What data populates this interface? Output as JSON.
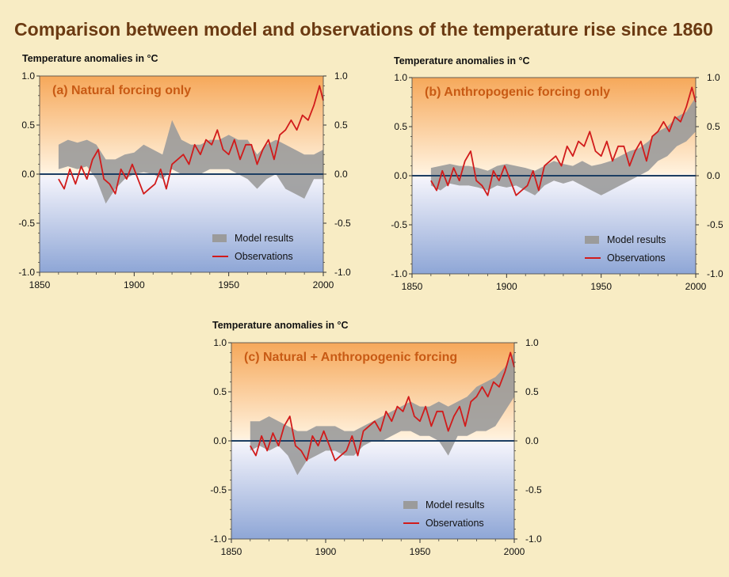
{
  "page_title": "Comparison between model and observations of the temperature rise since 1860",
  "colors": {
    "background": "#f8ecc4",
    "title": "#6b3a12",
    "panel_title": "#c85a14",
    "warm_top": "#f6a85a",
    "cool_bottom": "#8ea6d6",
    "zero_line": "#1d3e63",
    "model_band": "#9b9b9b",
    "observations": "#d11b1b"
  },
  "chart_data": [
    {
      "type": "line",
      "panel": "a",
      "title": "(a) Natural forcing only",
      "ylabel": "Temperature anomalies in °C",
      "xlabel": "",
      "xlim": [
        1850,
        2000
      ],
      "ylim": [
        -1.0,
        1.0
      ],
      "xticks": [
        1850,
        1900,
        1950,
        2000
      ],
      "yticks": [
        1.0,
        0.5,
        0.0,
        -0.5,
        -1.0
      ],
      "ytick_labels": [
        "1.0",
        "0.5",
        "0.0",
        "-0.5",
        "-1.0"
      ],
      "legend": {
        "model": "Model results",
        "observations": "Observations",
        "position": "bottom-right"
      },
      "series": [
        {
          "name": "Model results",
          "type": "band",
          "x": [
            1860,
            1865,
            1870,
            1875,
            1880,
            1885,
            1890,
            1895,
            1900,
            1905,
            1910,
            1915,
            1920,
            1925,
            1930,
            1935,
            1940,
            1945,
            1950,
            1955,
            1960,
            1965,
            1970,
            1975,
            1980,
            1985,
            1990,
            1995,
            2000
          ],
          "lower": [
            0.05,
            0.08,
            0.05,
            0.08,
            -0.05,
            -0.3,
            -0.15,
            -0.05,
            0.0,
            0.02,
            0.0,
            -0.05,
            0.05,
            0.0,
            0.0,
            0.0,
            0.05,
            0.05,
            0.05,
            0.0,
            -0.05,
            -0.15,
            -0.05,
            0.0,
            -0.15,
            -0.2,
            -0.25,
            -0.05,
            -0.05
          ],
          "upper": [
            0.3,
            0.35,
            0.32,
            0.35,
            0.3,
            0.15,
            0.15,
            0.2,
            0.22,
            0.3,
            0.25,
            0.2,
            0.55,
            0.35,
            0.3,
            0.3,
            0.35,
            0.35,
            0.4,
            0.35,
            0.35,
            0.2,
            0.3,
            0.35,
            0.3,
            0.25,
            0.2,
            0.2,
            0.25
          ]
        },
        {
          "name": "Observations",
          "type": "line",
          "x": [
            1860,
            1863,
            1866,
            1869,
            1872,
            1875,
            1878,
            1881,
            1884,
            1887,
            1890,
            1893,
            1896,
            1899,
            1902,
            1905,
            1908,
            1911,
            1914,
            1917,
            1920,
            1923,
            1926,
            1929,
            1932,
            1935,
            1938,
            1941,
            1944,
            1947,
            1950,
            1953,
            1956,
            1959,
            1962,
            1965,
            1968,
            1971,
            1974,
            1977,
            1980,
            1983,
            1986,
            1989,
            1992,
            1995,
            1998,
            2000
          ],
          "y": [
            -0.05,
            -0.15,
            0.05,
            -0.1,
            0.08,
            -0.05,
            0.15,
            0.25,
            -0.05,
            -0.1,
            -0.2,
            0.05,
            -0.05,
            0.1,
            -0.05,
            -0.2,
            -0.15,
            -0.1,
            0.05,
            -0.15,
            0.1,
            0.15,
            0.2,
            0.1,
            0.3,
            0.2,
            0.35,
            0.3,
            0.45,
            0.25,
            0.2,
            0.35,
            0.15,
            0.3,
            0.3,
            0.1,
            0.25,
            0.35,
            0.15,
            0.4,
            0.45,
            0.55,
            0.45,
            0.6,
            0.55,
            0.7,
            0.9,
            0.75
          ]
        }
      ]
    },
    {
      "type": "line",
      "panel": "b",
      "title": "(b) Anthropogenic forcing only",
      "ylabel": "Temperature anomalies in °C",
      "xlabel": "",
      "xlim": [
        1850,
        2000
      ],
      "ylim": [
        -1.0,
        1.0
      ],
      "xticks": [
        1850,
        1900,
        1950,
        2000
      ],
      "yticks": [
        1.0,
        0.5,
        0.0,
        -0.5,
        -1.0
      ],
      "ytick_labels": [
        "1.0",
        "0.5",
        "0.0",
        "-0.5",
        "-1.0"
      ],
      "legend": {
        "model": "Model results",
        "observations": "Observations",
        "position": "bottom-right"
      },
      "series": [
        {
          "name": "Model results",
          "type": "band",
          "x": [
            1860,
            1865,
            1870,
            1875,
            1880,
            1885,
            1890,
            1895,
            1900,
            1905,
            1910,
            1915,
            1920,
            1925,
            1930,
            1935,
            1940,
            1945,
            1950,
            1955,
            1960,
            1965,
            1970,
            1975,
            1980,
            1985,
            1990,
            1995,
            2000
          ],
          "lower": [
            -0.1,
            -0.15,
            -0.08,
            -0.1,
            -0.1,
            -0.12,
            -0.15,
            -0.1,
            -0.12,
            -0.1,
            -0.15,
            -0.2,
            -0.1,
            -0.05,
            -0.08,
            -0.05,
            -0.1,
            -0.15,
            -0.2,
            -0.15,
            -0.1,
            -0.05,
            0.0,
            0.05,
            0.15,
            0.2,
            0.3,
            0.35,
            0.45
          ],
          "upper": [
            0.08,
            0.1,
            0.12,
            0.1,
            0.1,
            0.08,
            0.05,
            0.1,
            0.12,
            0.1,
            0.08,
            0.05,
            0.1,
            0.15,
            0.12,
            0.1,
            0.15,
            0.1,
            0.12,
            0.15,
            0.2,
            0.25,
            0.28,
            0.35,
            0.45,
            0.5,
            0.6,
            0.65,
            0.8
          ]
        },
        {
          "name": "Observations",
          "type": "line",
          "x": [
            1860,
            1863,
            1866,
            1869,
            1872,
            1875,
            1878,
            1881,
            1884,
            1887,
            1890,
            1893,
            1896,
            1899,
            1902,
            1905,
            1908,
            1911,
            1914,
            1917,
            1920,
            1923,
            1926,
            1929,
            1932,
            1935,
            1938,
            1941,
            1944,
            1947,
            1950,
            1953,
            1956,
            1959,
            1962,
            1965,
            1968,
            1971,
            1974,
            1977,
            1980,
            1983,
            1986,
            1989,
            1992,
            1995,
            1998,
            2000
          ],
          "y": [
            -0.05,
            -0.15,
            0.05,
            -0.1,
            0.08,
            -0.05,
            0.15,
            0.25,
            -0.05,
            -0.1,
            -0.2,
            0.05,
            -0.05,
            0.1,
            -0.05,
            -0.2,
            -0.15,
            -0.1,
            0.05,
            -0.15,
            0.1,
            0.15,
            0.2,
            0.1,
            0.3,
            0.2,
            0.35,
            0.3,
            0.45,
            0.25,
            0.2,
            0.35,
            0.15,
            0.3,
            0.3,
            0.1,
            0.25,
            0.35,
            0.15,
            0.4,
            0.45,
            0.55,
            0.45,
            0.6,
            0.55,
            0.7,
            0.9,
            0.75
          ]
        }
      ]
    },
    {
      "type": "line",
      "panel": "c",
      "title": "(c) Natural + Anthropogenic forcing",
      "ylabel": "Temperature anomalies in °C",
      "xlabel": "",
      "xlim": [
        1850,
        2000
      ],
      "ylim": [
        -1.0,
        1.0
      ],
      "xticks": [
        1850,
        1900,
        1950,
        2000
      ],
      "yticks": [
        1.0,
        0.5,
        0.0,
        -0.5,
        -1.0
      ],
      "ytick_labels": [
        "1.0",
        "0.5",
        "0.0",
        "-0.5",
        "-1.0"
      ],
      "legend": {
        "model": "Model results",
        "observations": "Observations",
        "position": "bottom-right"
      },
      "series": [
        {
          "name": "Model results",
          "type": "band",
          "x": [
            1860,
            1865,
            1870,
            1875,
            1880,
            1885,
            1890,
            1895,
            1900,
            1905,
            1910,
            1915,
            1920,
            1925,
            1930,
            1935,
            1940,
            1945,
            1950,
            1955,
            1960,
            1965,
            1970,
            1975,
            1980,
            1985,
            1990,
            1995,
            2000
          ],
          "lower": [
            -0.1,
            -0.05,
            -0.1,
            -0.05,
            -0.15,
            -0.35,
            -0.2,
            -0.15,
            -0.1,
            -0.1,
            -0.15,
            -0.15,
            -0.05,
            0.0,
            0.0,
            0.05,
            0.1,
            0.1,
            0.05,
            0.05,
            0.0,
            -0.15,
            0.05,
            0.05,
            0.1,
            0.1,
            0.15,
            0.3,
            0.45
          ],
          "upper": [
            0.2,
            0.2,
            0.25,
            0.2,
            0.15,
            0.1,
            0.1,
            0.15,
            0.15,
            0.15,
            0.1,
            0.1,
            0.15,
            0.2,
            0.25,
            0.3,
            0.35,
            0.4,
            0.35,
            0.35,
            0.4,
            0.35,
            0.4,
            0.45,
            0.55,
            0.6,
            0.65,
            0.75,
            0.9
          ]
        },
        {
          "name": "Observations",
          "type": "line",
          "x": [
            1860,
            1863,
            1866,
            1869,
            1872,
            1875,
            1878,
            1881,
            1884,
            1887,
            1890,
            1893,
            1896,
            1899,
            1902,
            1905,
            1908,
            1911,
            1914,
            1917,
            1920,
            1923,
            1926,
            1929,
            1932,
            1935,
            1938,
            1941,
            1944,
            1947,
            1950,
            1953,
            1956,
            1959,
            1962,
            1965,
            1968,
            1971,
            1974,
            1977,
            1980,
            1983,
            1986,
            1989,
            1992,
            1995,
            1998,
            2000
          ],
          "y": [
            -0.05,
            -0.15,
            0.05,
            -0.1,
            0.08,
            -0.05,
            0.15,
            0.25,
            -0.05,
            -0.1,
            -0.2,
            0.05,
            -0.05,
            0.1,
            -0.05,
            -0.2,
            -0.15,
            -0.1,
            0.05,
            -0.15,
            0.1,
            0.15,
            0.2,
            0.1,
            0.3,
            0.2,
            0.35,
            0.3,
            0.45,
            0.25,
            0.2,
            0.35,
            0.15,
            0.3,
            0.3,
            0.1,
            0.25,
            0.35,
            0.15,
            0.4,
            0.45,
            0.55,
            0.45,
            0.6,
            0.55,
            0.7,
            0.9,
            0.75
          ]
        }
      ]
    }
  ]
}
